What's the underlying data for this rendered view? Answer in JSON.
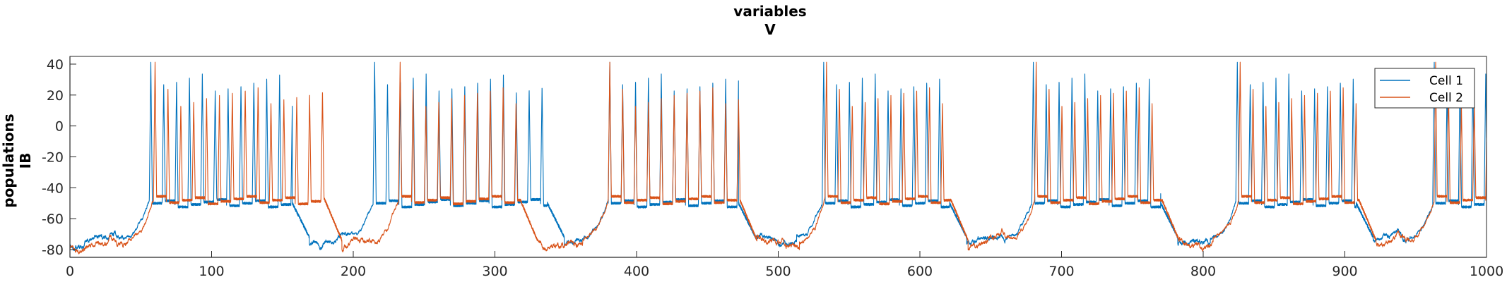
{
  "chart_data": {
    "type": "line",
    "title": [
      "variables",
      "V"
    ],
    "ylabel": [
      "populations",
      "IB"
    ],
    "xlabel": "",
    "xlim": [
      0,
      1000
    ],
    "ylim": [
      -85,
      45
    ],
    "xticks": [
      0,
      100,
      200,
      300,
      400,
      500,
      600,
      700,
      800,
      900,
      1000
    ],
    "yticks": [
      -80,
      -60,
      -40,
      -20,
      0,
      20,
      40
    ],
    "grid": false,
    "legend_position": "top-right",
    "series": [
      {
        "name": "Cell 1",
        "color": "#0072BD",
        "bursts": [
          [
            56,
            157
          ],
          [
            214,
            337
          ],
          [
            380,
            472
          ],
          [
            531,
            621
          ],
          [
            679,
            770
          ],
          [
            823,
            908
          ],
          [
            962,
            1000
          ]
        ],
        "spike_rate_hz": 110,
        "spike_peak": 28,
        "plateau_trough": -50,
        "rest_level": -78,
        "initial_spike_peak": 42
      },
      {
        "name": "Cell 2",
        "color": "#D95319",
        "bursts": [
          [
            59,
            180
          ],
          [
            232,
            318
          ],
          [
            380,
            473
          ],
          [
            533,
            622
          ],
          [
            681,
            771
          ],
          [
            825,
            910
          ],
          [
            963,
            1000
          ]
        ],
        "spike_rate_hz": 110,
        "spike_peak": 20,
        "plateau_trough": -48,
        "rest_level": -80,
        "initial_spike_peak": 42
      }
    ]
  }
}
